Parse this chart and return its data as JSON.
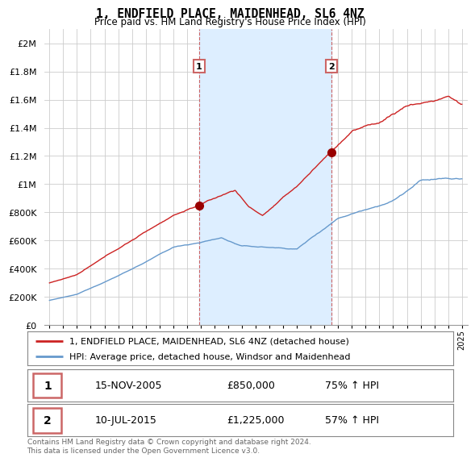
{
  "title": "1, ENDFIELD PLACE, MAIDENHEAD, SL6 4NZ",
  "subtitle": "Price paid vs. HM Land Registry's House Price Index (HPI)",
  "legend_line1": "1, ENDFIELD PLACE, MAIDENHEAD, SL6 4NZ (detached house)",
  "legend_line2": "HPI: Average price, detached house, Windsor and Maidenhead",
  "sale1_date": "15-NOV-2005",
  "sale1_price": "£850,000",
  "sale1_hpi": "75% ↑ HPI",
  "sale2_date": "10-JUL-2015",
  "sale2_price": "£1,225,000",
  "sale2_hpi": "57% ↑ HPI",
  "footer": "Contains HM Land Registry data © Crown copyright and database right 2024.\nThis data is licensed under the Open Government Licence v3.0.",
  "line_color_red": "#CC2222",
  "line_color_blue": "#6699CC",
  "vline_color": "#CC6666",
  "shade_color": "#DDEEFF",
  "marker_color_red": "#990000",
  "background_color": "#FFFFFF",
  "grid_color": "#CCCCCC",
  "ylim": [
    0,
    2100000
  ],
  "yticks": [
    0,
    200000,
    400000,
    600000,
    800000,
    1000000,
    1200000,
    1400000,
    1600000,
    1800000,
    2000000
  ],
  "sale1_x": 2005.88,
  "sale1_y": 850000,
  "sale2_x": 2015.53,
  "sale2_y": 1225000,
  "xmin": 1995,
  "xmax": 2025
}
